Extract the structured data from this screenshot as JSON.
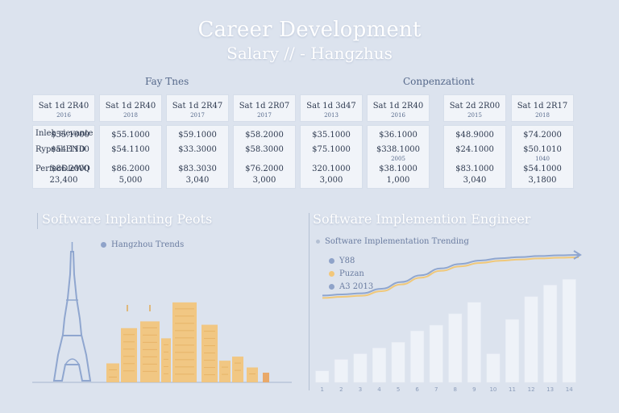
{
  "header": {
    "title": "Career Development",
    "subtitle": "Salary // - Hangzhus"
  },
  "table": {
    "group_left": "Fay Tnes",
    "group_right": "Conpenzationt",
    "columns": [
      {
        "header": "Sat 1d 2R40",
        "sub": "2016",
        "rows": [
          "$55.1000",
          "$54.1100",
          "$86.2000"
        ],
        "total": "23,400"
      },
      {
        "header": "Sat 1d 2R40",
        "sub": "2018",
        "rows": [
          "$55.1000",
          "$54.1100",
          "$86.2000"
        ],
        "total": "5,000"
      },
      {
        "header": "Sat 1d 2R47",
        "sub": "2017",
        "rows": [
          "$59.1000",
          "$33.3000",
          "$83.3030"
        ],
        "total": "3,040"
      },
      {
        "header": "Sat 1d 2R07",
        "sub": "2017",
        "rows": [
          "$58.2000",
          "$58.3000",
          "$76.2000"
        ],
        "total": "3,000"
      },
      {
        "header": "Sat 1d 3d47",
        "sub": "2013",
        "rows": [
          "$35.1000",
          "$75.1000",
          "320.1000"
        ],
        "total": "3,000"
      },
      {
        "header": "Sat 1d 2R40",
        "sub": "2016",
        "rows": [
          "$36.1000",
          "$338.1000",
          "$38.1000"
        ],
        "row2_extra": "2005",
        "total": "1,000"
      },
      {
        "header": "Sat 2d 2R00",
        "sub": "2015",
        "rows": [
          "$48.9000",
          "$24.1000",
          "$83.1000"
        ],
        "total": "3,040"
      },
      {
        "header": "Sat 1d 2R17",
        "sub": "2018",
        "rows": [
          "$74.2000",
          "$50.1010",
          "$54.1000"
        ],
        "row2_extra": "1040",
        "total": "3,1800"
      }
    ],
    "row_labels": [
      "Inleh sievante",
      "Rypeal END",
      "PerfecDieWQ"
    ]
  },
  "left_section": {
    "title": "Software Inplanting Peots",
    "legend": "Hangzhou Trends"
  },
  "right_section": {
    "title": "Software Implemention Engineer",
    "subtitle": "Software Implementation Trending",
    "legend": [
      {
        "label": "Y88",
        "color": "#8fa3c9"
      },
      {
        "label": "Puzan",
        "color": "#f2c77a"
      },
      {
        "label": "A3 2013",
        "color": "#8fa3c9"
      }
    ]
  },
  "chart_data": [
    {
      "type": "bar",
      "title": "Software Inplanting Peots",
      "legend": [
        "Hangzhou Trends"
      ],
      "series": [
        {
          "name": "Hangzhou Trends",
          "values": [
            28,
            80,
            90,
            65,
            118,
            85,
            32,
            38,
            22
          ]
        }
      ]
    },
    {
      "type": "bar",
      "title": "Software Implemention Engineer",
      "categories": [
        "1",
        "2",
        "3",
        "4",
        "5",
        "6",
        "7",
        "8",
        "9",
        "10",
        "11",
        "12",
        "13",
        "14"
      ],
      "values": [
        2,
        4,
        5,
        6,
        7,
        9,
        10,
        12,
        14,
        5,
        11,
        15,
        17,
        18
      ],
      "trend_line": [
        2,
        2.5,
        3,
        5,
        8,
        11,
        14,
        16,
        17.5,
        18.5,
        19,
        19.5,
        19.8,
        20
      ],
      "ylim": [
        0,
        22
      ]
    }
  ],
  "colors": {
    "background": "#dce3ee",
    "bar_light": "#eef2f8",
    "building_orange": "#f3c377",
    "tower_blue": "#8fa6cf"
  }
}
